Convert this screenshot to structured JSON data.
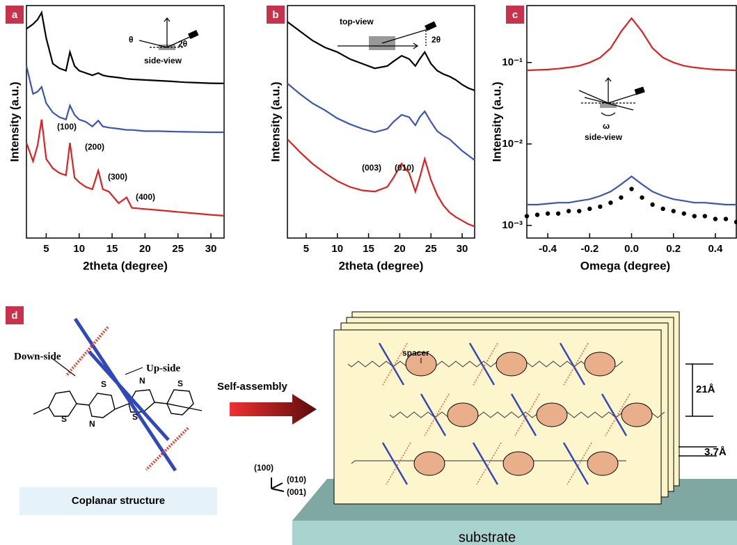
{
  "chart_data": [
    {
      "type": "line",
      "panel_label": "a",
      "x_label": "2theta (degree)",
      "y_label": "Intensity (a.u.)",
      "x": [
        2,
        3,
        3.7,
        4.3,
        5,
        6,
        7,
        8,
        8.6,
        9.3,
        10,
        11,
        12,
        12.9,
        13.6,
        14.5,
        16,
        17.2,
        18,
        20,
        22,
        24,
        26,
        28,
        30,
        32
      ],
      "series": [
        {
          "color": "#000000",
          "values": [
            90,
            92,
            94,
            97,
            86,
            75,
            73,
            72,
            80,
            74,
            72,
            71,
            70,
            71,
            70,
            69.5,
            69,
            68.5,
            68.3,
            68,
            67.7,
            67.4,
            67,
            66.8,
            66.6,
            66.5
          ]
        },
        {
          "color": "#3a55b4",
          "values": [
            74,
            62,
            63,
            65,
            58,
            54,
            52,
            51,
            57,
            53,
            51,
            50,
            48,
            50.5,
            48,
            47.5,
            47,
            46.5,
            46.5,
            46,
            46,
            45.8,
            45.7,
            45.6,
            45.5,
            45.5
          ]
        },
        {
          "color": "#e02020",
          "values": [
            41,
            33,
            40,
            51,
            34,
            30,
            28,
            27,
            41,
            26,
            24,
            22,
            21,
            29,
            21,
            20,
            15,
            17.5,
            13,
            12.5,
            12,
            11.5,
            11,
            10.5,
            10,
            9.6
          ]
        }
      ],
      "xlim": [
        2,
        32
      ],
      "xticks": [
        5,
        10,
        15,
        20,
        25,
        30
      ],
      "ylim": [
        0,
        100
      ],
      "annotations": [
        "(100)",
        "(200)",
        "(300)",
        "(400)",
        "θ",
        "2θ",
        "side-view"
      ]
    },
    {
      "type": "line",
      "panel_label": "b",
      "x_label": "2theta (degree)",
      "y_label": "Intensity (a.u.)",
      "x": [
        2,
        4,
        6,
        8,
        10,
        12,
        14,
        16,
        18,
        19,
        20.3,
        21.5,
        22.5,
        23.2,
        24,
        25,
        26,
        27,
        28,
        29,
        30,
        31,
        32
      ],
      "series": [
        {
          "color": "#000000",
          "values": [
            93,
            89,
            85,
            82,
            80,
            77,
            75,
            73,
            74,
            76,
            78.4,
            77,
            74,
            77,
            80,
            75,
            72,
            70.5,
            69.5,
            68,
            66,
            64.5,
            63.5
          ]
        },
        {
          "color": "#3a55b4",
          "values": [
            66.5,
            62,
            58,
            55,
            51.5,
            49,
            47,
            45.5,
            47,
            50,
            53,
            52,
            48.5,
            52,
            54.5,
            50,
            46,
            44,
            42.5,
            40,
            37.5,
            35.5,
            33.5
          ]
        },
        {
          "color": "#e02020",
          "values": [
            42.5,
            37,
            32,
            28,
            24.5,
            22,
            20.5,
            20,
            22,
            26,
            32,
            28,
            20,
            26,
            34,
            25,
            18.5,
            14,
            11,
            9,
            7.5,
            6,
            5
          ]
        }
      ],
      "xlim": [
        2,
        32
      ],
      "xticks": [
        5,
        10,
        15,
        20,
        25,
        30
      ],
      "ylim": [
        0,
        100
      ],
      "annotations": [
        "top-view",
        "2θ",
        "(003)",
        "(010)"
      ]
    },
    {
      "type": "line",
      "panel_label": "c",
      "x_label": "Omega (degree)",
      "y_label": "Intensity (a.u.)",
      "log_scale": true,
      "x": [
        -0.5,
        -0.45,
        -0.4,
        -0.35,
        -0.3,
        -0.25,
        -0.2,
        -0.15,
        -0.1,
        -0.05,
        0,
        0.05,
        0.1,
        0.15,
        0.2,
        0.25,
        0.3,
        0.35,
        0.4,
        0.45,
        0.5
      ],
      "series": [
        {
          "color": "#e02020",
          "values": [
            0.08,
            0.081,
            0.082,
            0.084,
            0.087,
            0.091,
            0.1,
            0.115,
            0.15,
            0.24,
            0.35,
            0.24,
            0.15,
            0.115,
            0.1,
            0.091,
            0.087,
            0.084,
            0.082,
            0.081,
            0.08
          ]
        },
        {
          "color": "#3a55b4",
          "values": [
            0.0018,
            0.0018,
            0.00185,
            0.0019,
            0.0019,
            0.002,
            0.0021,
            0.0023,
            0.0026,
            0.0032,
            0.004,
            0.0032,
            0.0026,
            0.0023,
            0.0021,
            0.002,
            0.0019,
            0.0019,
            0.00185,
            0.0018,
            0.0018
          ]
        },
        {
          "color": "#000000",
          "marker": "dot",
          "values": [
            0.0013,
            0.00135,
            0.0014,
            0.0014,
            0.0015,
            0.0015,
            0.0016,
            0.0017,
            0.0019,
            0.0022,
            0.0028,
            0.0022,
            0.0018,
            0.0016,
            0.0015,
            0.0014,
            0.0013,
            0.0013,
            0.0012,
            0.0012,
            0.0011
          ]
        }
      ],
      "xlim": [
        -0.5,
        0.5
      ],
      "xticks": [
        -0.4,
        -0.2,
        {
          "value": 0,
          "label": "0.0"
        },
        0.2,
        0.4
      ],
      "ylim": [
        0.0007,
        0.5
      ],
      "yticks": [
        {
          "value": 0.001,
          "label": "10⁻³"
        },
        {
          "value": 0.01,
          "label": "10⁻²"
        },
        {
          "value": 0.1,
          "label": "10⁻¹"
        }
      ],
      "annotations": [
        "ω",
        "side-view"
      ]
    }
  ],
  "panel_d": {
    "label": "d",
    "molecule_atoms": [
      "S",
      "S",
      "N",
      "N",
      "S",
      "S"
    ],
    "down_label": "Down-side",
    "up_label": "Up-side",
    "caption": "Coplanar structure",
    "arrow_label": "Self-assembly",
    "spacer_label": "spacer",
    "spacing_labels": [
      "21Å",
      "3.7Å"
    ],
    "axes_labels": [
      "(100)",
      "(010)",
      "(001)"
    ],
    "substrate_label": "substrate"
  }
}
